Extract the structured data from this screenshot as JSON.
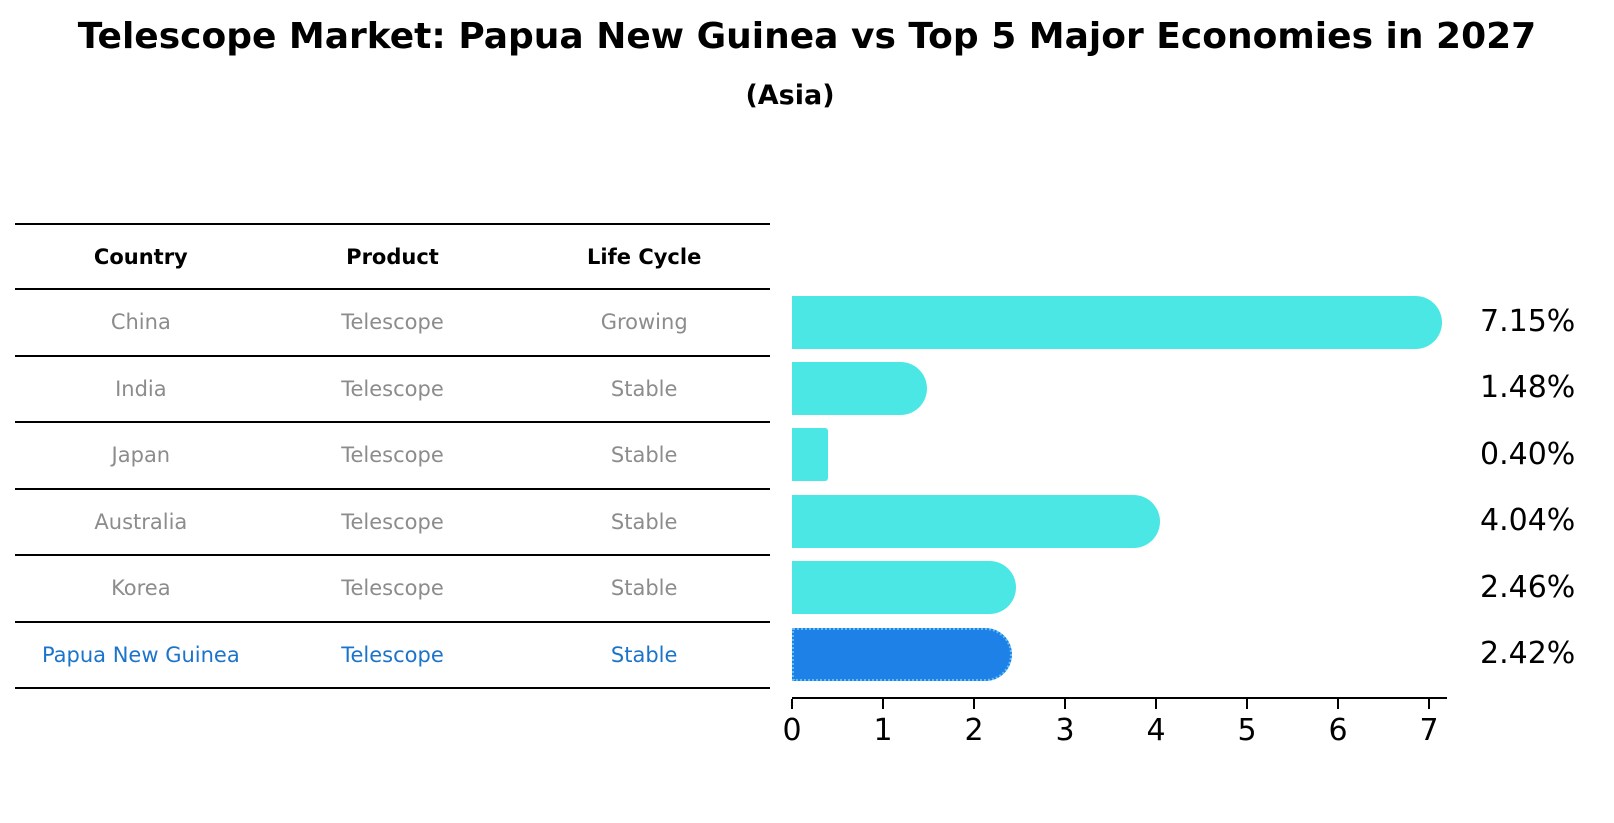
{
  "title": "Telescope Market: Papua New Guinea vs Top 5 Major Economies in 2027",
  "subtitle": "(Asia)",
  "table": {
    "headers": [
      "Country",
      "Product",
      "Life Cycle"
    ],
    "rows": [
      {
        "country": "China",
        "product": "Telescope",
        "life_cycle": "Growing",
        "highlight": false
      },
      {
        "country": "India",
        "product": "Telescope",
        "life_cycle": "Stable",
        "highlight": false
      },
      {
        "country": "Japan",
        "product": "Telescope",
        "life_cycle": "Stable",
        "highlight": false
      },
      {
        "country": "Australia",
        "product": "Telescope",
        "life_cycle": "Stable",
        "highlight": false
      },
      {
        "country": "Korea",
        "product": "Telescope",
        "life_cycle": "Stable",
        "highlight": false
      },
      {
        "country": "Papua New Guinea",
        "product": "Telescope",
        "life_cycle": "Stable",
        "highlight": true
      }
    ]
  },
  "chart_data": {
    "type": "bar",
    "orientation": "horizontal",
    "title": "Telescope Market: Papua New Guinea vs Top 5 Major Economies in 2027",
    "subtitle": "(Asia)",
    "categories": [
      "China",
      "India",
      "Japan",
      "Australia",
      "Korea",
      "Papua New Guinea"
    ],
    "values": [
      7.15,
      1.48,
      0.4,
      4.04,
      2.46,
      2.42
    ],
    "value_labels": [
      "7.15%",
      "1.48%",
      "0.40%",
      "4.04%",
      "2.46%",
      "2.42%"
    ],
    "xlabel": "",
    "ylabel": "",
    "xlim": [
      0,
      7.2
    ],
    "x_ticks": [
      0,
      1,
      2,
      3,
      4,
      5,
      6,
      7
    ],
    "grid": false,
    "legend": false,
    "bar_color": "#4AE7E4",
    "highlight_index": 5,
    "highlight_color": "#1E81E8",
    "highlight_edge_color": "#63BDF2",
    "highlight_edge_style": "dotted"
  },
  "colors": {
    "highlight_text": "#1B74CC",
    "muted_text": "#8C8C8C",
    "axis_and_lines": "#000000"
  }
}
